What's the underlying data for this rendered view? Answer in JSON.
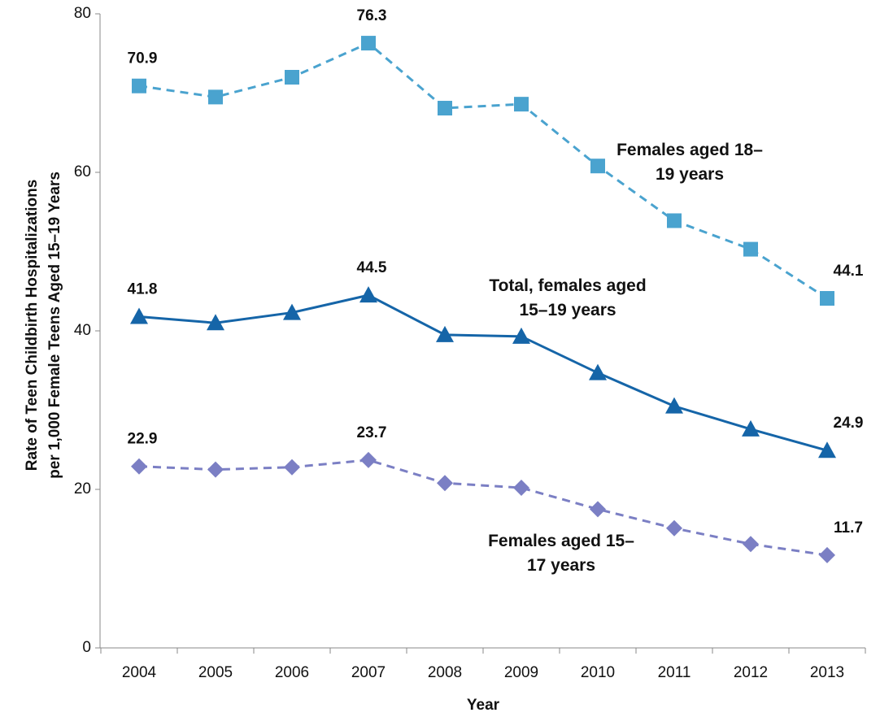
{
  "chart_data": {
    "type": "line",
    "ylabel": [
      "Rate of Teen Childbirth Hospitalizations",
      "per 1,000 Female Teens Aged 15–19 Years"
    ],
    "xlabel": "Year",
    "categories": [
      "2004",
      "2005",
      "2006",
      "2007",
      "2008",
      "2009",
      "2010",
      "2011",
      "2012",
      "2013"
    ],
    "ylim": [
      0,
      80
    ],
    "yticks": [
      0,
      20,
      40,
      60,
      80
    ],
    "series": [
      {
        "name": "Females aged 18–19 years",
        "color": "#4aa3cf",
        "marker": "square",
        "dashed": true,
        "values": [
          70.9,
          69.5,
          72.0,
          76.3,
          68.1,
          68.6,
          60.8,
          53.9,
          50.3,
          44.1
        ],
        "value_labels": [
          "70.9",
          null,
          null,
          "76.3",
          null,
          null,
          null,
          null,
          null,
          "44.1"
        ]
      },
      {
        "name": "Total, females aged 15–19 years",
        "color": "#1565a8",
        "marker": "triangle",
        "dashed": false,
        "values": [
          41.8,
          41.0,
          42.3,
          44.5,
          39.5,
          39.3,
          34.7,
          30.5,
          27.6,
          24.9
        ],
        "value_labels": [
          "41.8",
          null,
          null,
          "44.5",
          null,
          null,
          null,
          null,
          null,
          "24.9"
        ]
      },
      {
        "name": "Females aged 15–17 years",
        "color": "#7b7fc4",
        "marker": "diamond",
        "dashed": true,
        "values": [
          22.9,
          22.5,
          22.8,
          23.7,
          20.8,
          20.2,
          17.5,
          15.1,
          13.1,
          11.7
        ],
        "value_labels": [
          "22.9",
          null,
          null,
          "23.7",
          null,
          null,
          null,
          null,
          null,
          "11.7"
        ]
      }
    ]
  }
}
